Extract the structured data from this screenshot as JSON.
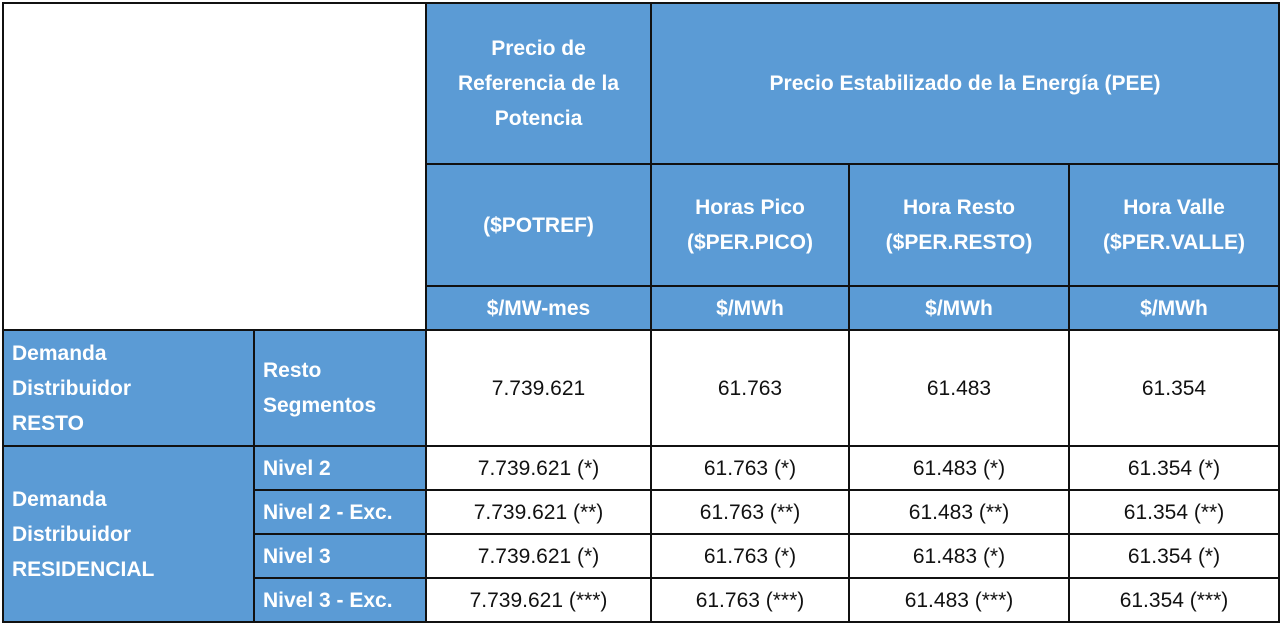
{
  "table": {
    "header": {
      "potencia": [
        "Precio de",
        "Referencia de la",
        "Potencia"
      ],
      "energia": "Precio Estabilizado de la Energía (PEE)",
      "columns": [
        {
          "name": [
            "($POTREF)"
          ],
          "unit": "$/MW-mes"
        },
        {
          "name": [
            "Horas Pico",
            "($PER.PICO)"
          ],
          "unit": "$/MWh"
        },
        {
          "name": [
            "Hora Resto",
            "($PER.RESTO)"
          ],
          "unit": "$/MWh"
        },
        {
          "name": [
            "Hora Valle",
            "($PER.VALLE)"
          ],
          "unit": "$/MWh"
        }
      ]
    },
    "groups": [
      {
        "label": [
          "Demanda",
          "Distribuidor",
          "RESTO"
        ],
        "rows": [
          {
            "segment": [
              "Resto",
              "Segmentos"
            ],
            "values": [
              "7.739.621",
              "61.763",
              "61.483",
              "61.354"
            ]
          }
        ]
      },
      {
        "label": [
          "Demanda",
          "Distribuidor",
          "RESIDENCIAL"
        ],
        "rows": [
          {
            "segment": [
              "Nivel 2"
            ],
            "values": [
              "7.739.621 (*)",
              "61.763 (*)",
              "61.483 (*)",
              "61.354 (*)"
            ]
          },
          {
            "segment": [
              "Nivel 2 - Exc."
            ],
            "values": [
              "7.739.621 (**)",
              "61.763 (**)",
              "61.483 (**)",
              "61.354 (**)"
            ]
          },
          {
            "segment": [
              "Nivel 3"
            ],
            "values": [
              "7.739.621 (*)",
              "61.763 (*)",
              "61.483 (*)",
              "61.354 (*)"
            ]
          },
          {
            "segment": [
              "Nivel 3 - Exc."
            ],
            "values": [
              "7.739.621 (***)",
              "61.763 (***)",
              "61.483 (***)",
              "61.354 (***)"
            ]
          }
        ]
      }
    ]
  }
}
